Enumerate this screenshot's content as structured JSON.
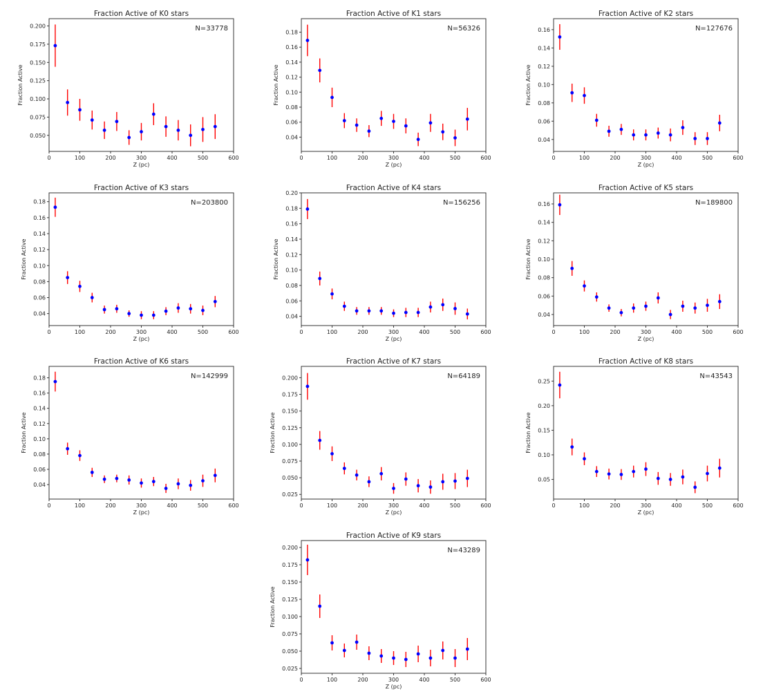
{
  "chart_data": [
    {
      "type": "scatter",
      "title": "Fraction Active of K0 stars",
      "annotation": "N=33778",
      "xlabel": "Z (pc)",
      "ylabel": "Fraction Active",
      "xlim": [
        0,
        600
      ],
      "xticks": [
        0,
        100,
        200,
        300,
        400,
        500,
        600
      ],
      "ylim": [
        0.028,
        0.21
      ],
      "yticks": [
        0.05,
        0.075,
        0.1,
        0.125,
        0.15,
        0.175,
        0.2
      ],
      "ytick_decimals": 3,
      "x": [
        20,
        60,
        100,
        140,
        180,
        220,
        260,
        300,
        340,
        380,
        420,
        460,
        500,
        540
      ],
      "y": [
        0.173,
        0.095,
        0.085,
        0.071,
        0.057,
        0.069,
        0.047,
        0.055,
        0.079,
        0.062,
        0.057,
        0.05,
        0.058,
        0.062
      ],
      "yerr": [
        0.029,
        0.018,
        0.015,
        0.013,
        0.012,
        0.013,
        0.01,
        0.012,
        0.015,
        0.014,
        0.014,
        0.015,
        0.017,
        0.017
      ]
    },
    {
      "type": "scatter",
      "title": "Fraction Active of K1 stars",
      "annotation": "N=56326",
      "xlabel": "Z (pc)",
      "ylabel": "Fraction Active",
      "xlim": [
        0,
        600
      ],
      "xticks": [
        0,
        100,
        200,
        300,
        400,
        500,
        600
      ],
      "ylim": [
        0.021,
        0.198
      ],
      "yticks": [
        0.04,
        0.06,
        0.08,
        0.1,
        0.12,
        0.14,
        0.16,
        0.18
      ],
      "ytick_decimals": 2,
      "x": [
        20,
        60,
        100,
        140,
        180,
        220,
        260,
        300,
        340,
        380,
        420,
        460,
        500,
        540
      ],
      "y": [
        0.169,
        0.129,
        0.093,
        0.062,
        0.056,
        0.048,
        0.065,
        0.061,
        0.055,
        0.037,
        0.059,
        0.047,
        0.039,
        0.064
      ],
      "yerr": [
        0.021,
        0.016,
        0.013,
        0.01,
        0.009,
        0.008,
        0.01,
        0.01,
        0.01,
        0.009,
        0.012,
        0.011,
        0.011,
        0.015
      ]
    },
    {
      "type": "scatter",
      "title": "Fraction Active of K2 stars",
      "annotation": "N=127676",
      "xlabel": "Z (pc)",
      "ylabel": "Fraction Active",
      "xlim": [
        0,
        600
      ],
      "xticks": [
        0,
        100,
        200,
        300,
        400,
        500,
        600
      ],
      "ylim": [
        0.027,
        0.172
      ],
      "yticks": [
        0.04,
        0.06,
        0.08,
        0.1,
        0.12,
        0.14,
        0.16
      ],
      "ytick_decimals": 2,
      "x": [
        20,
        60,
        100,
        140,
        180,
        220,
        260,
        300,
        340,
        380,
        420,
        460,
        500,
        540
      ],
      "y": [
        0.152,
        0.091,
        0.088,
        0.061,
        0.049,
        0.051,
        0.045,
        0.045,
        0.047,
        0.045,
        0.053,
        0.041,
        0.041,
        0.058
      ],
      "yerr": [
        0.014,
        0.01,
        0.009,
        0.007,
        0.006,
        0.006,
        0.006,
        0.006,
        0.006,
        0.007,
        0.008,
        0.007,
        0.007,
        0.009
      ]
    },
    {
      "type": "scatter",
      "title": "Fraction Active of K3 stars",
      "annotation": "N=203800",
      "xlabel": "Z (pc)",
      "ylabel": "Fraction Active",
      "xlim": [
        0,
        600
      ],
      "xticks": [
        0,
        100,
        200,
        300,
        400,
        500,
        600
      ],
      "ylim": [
        0.025,
        0.191
      ],
      "yticks": [
        0.04,
        0.06,
        0.08,
        0.1,
        0.12,
        0.14,
        0.16,
        0.18
      ],
      "ytick_decimals": 2,
      "x": [
        20,
        60,
        100,
        140,
        180,
        220,
        260,
        300,
        340,
        380,
        420,
        460,
        500,
        540
      ],
      "y": [
        0.173,
        0.085,
        0.074,
        0.06,
        0.045,
        0.046,
        0.04,
        0.038,
        0.038,
        0.043,
        0.047,
        0.046,
        0.044,
        0.055
      ],
      "yerr": [
        0.012,
        0.008,
        0.007,
        0.006,
        0.005,
        0.005,
        0.004,
        0.005,
        0.005,
        0.005,
        0.006,
        0.006,
        0.006,
        0.007
      ]
    },
    {
      "type": "scatter",
      "title": "Fraction Active of K4 stars",
      "annotation": "N=156256",
      "xlabel": "Z (pc)",
      "ylabel": "Fraction Active",
      "xlim": [
        0,
        600
      ],
      "xticks": [
        0,
        100,
        200,
        300,
        400,
        500,
        600
      ],
      "ylim": [
        0.028,
        0.2
      ],
      "yticks": [
        0.04,
        0.06,
        0.08,
        0.1,
        0.12,
        0.14,
        0.16,
        0.18,
        0.2
      ],
      "ytick_decimals": 2,
      "x": [
        20,
        60,
        100,
        140,
        180,
        220,
        260,
        300,
        340,
        380,
        420,
        460,
        500,
        540
      ],
      "y": [
        0.179,
        0.089,
        0.069,
        0.053,
        0.047,
        0.047,
        0.047,
        0.044,
        0.045,
        0.045,
        0.052,
        0.055,
        0.05,
        0.043
      ],
      "yerr": [
        0.013,
        0.009,
        0.007,
        0.006,
        0.005,
        0.005,
        0.005,
        0.005,
        0.006,
        0.006,
        0.007,
        0.008,
        0.008,
        0.007
      ]
    },
    {
      "type": "scatter",
      "title": "Fraction Active of K5 stars",
      "annotation": "N=189800",
      "xlabel": "Z (pc)",
      "ylabel": "Fraction Active",
      "xlim": [
        0,
        600
      ],
      "xticks": [
        0,
        100,
        200,
        300,
        400,
        500,
        600
      ],
      "ylim": [
        0.028,
        0.172
      ],
      "yticks": [
        0.04,
        0.06,
        0.08,
        0.1,
        0.12,
        0.14,
        0.16
      ],
      "ytick_decimals": 2,
      "x": [
        20,
        60,
        100,
        140,
        180,
        220,
        260,
        300,
        340,
        380,
        420,
        460,
        500,
        540
      ],
      "y": [
        0.159,
        0.09,
        0.071,
        0.059,
        0.047,
        0.042,
        0.047,
        0.049,
        0.058,
        0.04,
        0.049,
        0.047,
        0.05,
        0.054
      ],
      "yerr": [
        0.011,
        0.008,
        0.006,
        0.005,
        0.004,
        0.004,
        0.005,
        0.005,
        0.006,
        0.005,
        0.006,
        0.006,
        0.007,
        0.008
      ]
    },
    {
      "type": "scatter",
      "title": "Fraction Active of K6 stars",
      "annotation": "N=142999",
      "xlabel": "Z (pc)",
      "ylabel": "Fraction Active",
      "xlim": [
        0,
        600
      ],
      "xticks": [
        0,
        100,
        200,
        300,
        400,
        500,
        600
      ],
      "ylim": [
        0.021,
        0.195
      ],
      "yticks": [
        0.04,
        0.06,
        0.08,
        0.1,
        0.12,
        0.14,
        0.16,
        0.18
      ],
      "ytick_decimals": 2,
      "x": [
        20,
        60,
        100,
        140,
        180,
        220,
        260,
        300,
        340,
        380,
        420,
        460,
        500,
        540
      ],
      "y": [
        0.175,
        0.087,
        0.078,
        0.056,
        0.047,
        0.048,
        0.046,
        0.042,
        0.044,
        0.035,
        0.041,
        0.039,
        0.045,
        0.052
      ],
      "yerr": [
        0.013,
        0.008,
        0.007,
        0.006,
        0.005,
        0.005,
        0.006,
        0.006,
        0.006,
        0.006,
        0.007,
        0.007,
        0.008,
        0.009
      ]
    },
    {
      "type": "scatter",
      "title": "Fraction Active of K7 stars",
      "annotation": "N=64189",
      "xlabel": "Z (pc)",
      "ylabel": "Fraction Active",
      "xlim": [
        0,
        600
      ],
      "xticks": [
        0,
        100,
        200,
        300,
        400,
        500,
        600
      ],
      "ylim": [
        0.018,
        0.217
      ],
      "yticks": [
        0.025,
        0.05,
        0.075,
        0.1,
        0.125,
        0.15,
        0.175,
        0.2
      ],
      "ytick_decimals": 3,
      "x": [
        20,
        60,
        100,
        140,
        180,
        220,
        260,
        300,
        340,
        380,
        420,
        460,
        500,
        540
      ],
      "y": [
        0.187,
        0.106,
        0.086,
        0.064,
        0.054,
        0.044,
        0.056,
        0.034,
        0.048,
        0.038,
        0.036,
        0.044,
        0.045,
        0.049
      ],
      "yerr": [
        0.02,
        0.014,
        0.011,
        0.009,
        0.008,
        0.008,
        0.01,
        0.008,
        0.01,
        0.01,
        0.01,
        0.012,
        0.012,
        0.013
      ]
    },
    {
      "type": "scatter",
      "title": "Fraction Active of K8 stars",
      "annotation": "N=43543",
      "xlabel": "Z (pc)",
      "ylabel": "Fraction Active",
      "xlim": [
        0,
        600
      ],
      "xticks": [
        0,
        100,
        200,
        300,
        400,
        500,
        600
      ],
      "ylim": [
        0.01,
        0.28
      ],
      "yticks": [
        0.05,
        0.1,
        0.15,
        0.2,
        0.25
      ],
      "ytick_decimals": 2,
      "x": [
        20,
        60,
        100,
        140,
        180,
        220,
        260,
        300,
        340,
        380,
        420,
        460,
        500,
        540
      ],
      "y": [
        0.242,
        0.116,
        0.092,
        0.066,
        0.061,
        0.06,
        0.066,
        0.071,
        0.052,
        0.05,
        0.055,
        0.034,
        0.062,
        0.073
      ],
      "yerr": [
        0.027,
        0.017,
        0.013,
        0.011,
        0.011,
        0.011,
        0.012,
        0.014,
        0.013,
        0.013,
        0.015,
        0.012,
        0.016,
        0.019
      ]
    },
    {
      "type": "scatter",
      "title": "Fraction Active of K9 stars",
      "annotation": "N=43289",
      "xlabel": "Z (pc)",
      "ylabel": "Fraction Active",
      "xlim": [
        0,
        600
      ],
      "xticks": [
        0,
        100,
        200,
        300,
        400,
        500,
        600
      ],
      "ylim": [
        0.018,
        0.21
      ],
      "yticks": [
        0.025,
        0.05,
        0.075,
        0.1,
        0.125,
        0.15,
        0.175,
        0.2
      ],
      "ytick_decimals": 3,
      "x": [
        20,
        60,
        100,
        140,
        180,
        220,
        260,
        300,
        340,
        380,
        420,
        460,
        500,
        540
      ],
      "y": [
        0.182,
        0.115,
        0.062,
        0.051,
        0.063,
        0.047,
        0.043,
        0.04,
        0.038,
        0.046,
        0.04,
        0.051,
        0.04,
        0.053
      ],
      "yerr": [
        0.022,
        0.017,
        0.011,
        0.01,
        0.011,
        0.01,
        0.01,
        0.01,
        0.011,
        0.012,
        0.012,
        0.013,
        0.013,
        0.016
      ]
    }
  ],
  "colors": {
    "marker": "#0000ff",
    "errorbar": "#ff0000"
  }
}
